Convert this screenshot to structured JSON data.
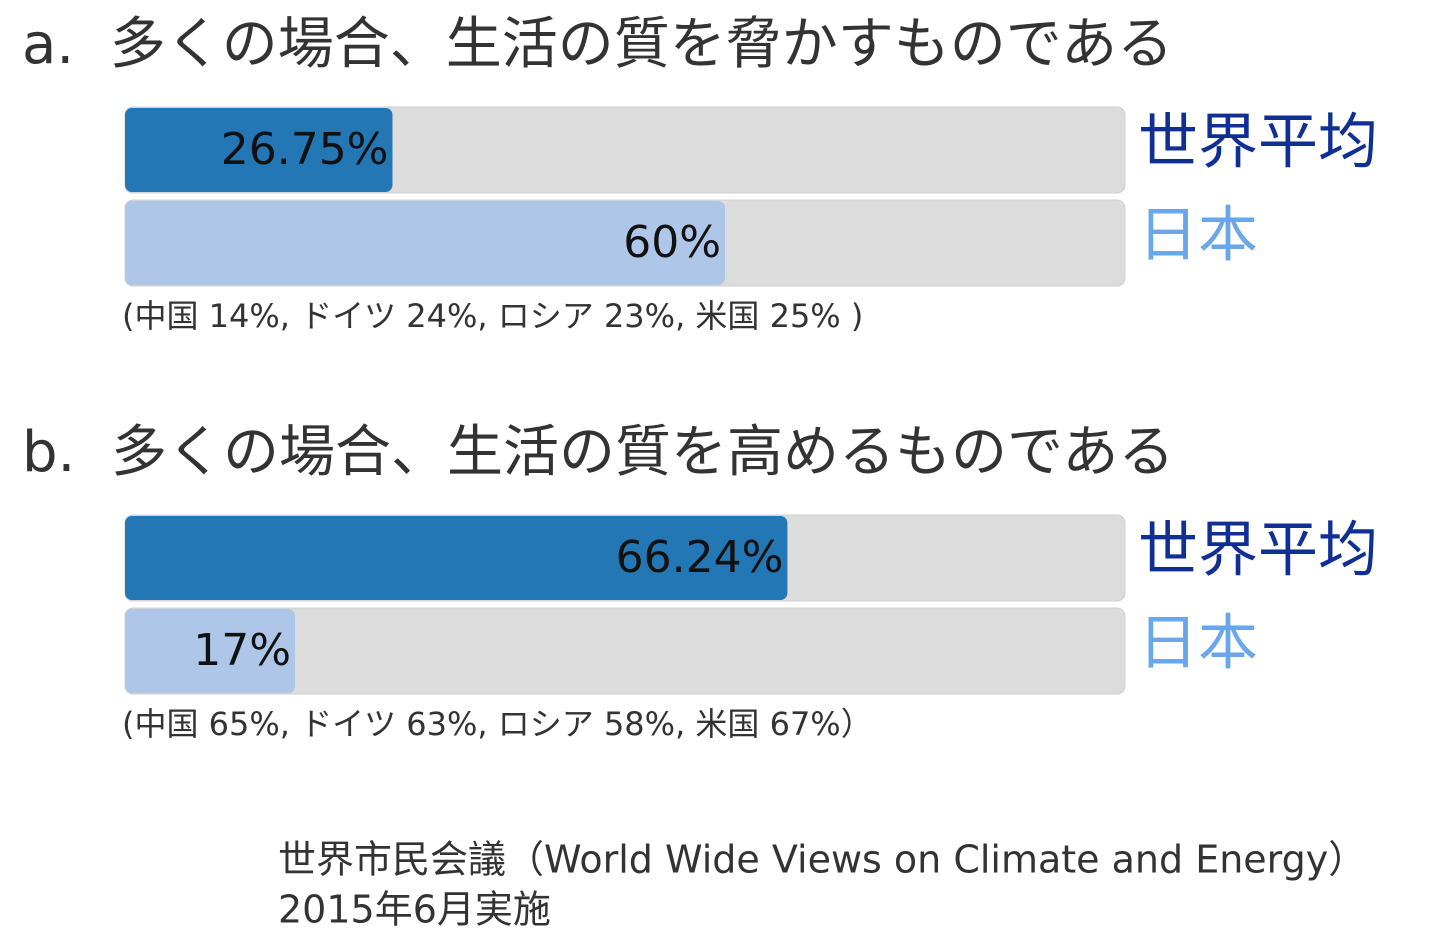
{
  "chart_data": [
    {
      "type": "bar",
      "orientation": "horizontal",
      "title": "a.  多くの場合、生活の質を脅かすものである",
      "categories": [
        "世界平均",
        "日本"
      ],
      "values": [
        26.75,
        60
      ],
      "value_labels": [
        "26.75%",
        "60%"
      ],
      "colors": [
        "#2377b4",
        "#aec7e8"
      ],
      "label_colors": [
        "#0f2f95",
        "#6aa6ea"
      ],
      "xlim": [
        0,
        100
      ],
      "note": "(中国 14%, ドイツ 24%, ロシア 23%, 米国 25% )"
    },
    {
      "type": "bar",
      "orientation": "horizontal",
      "title": "b.  多くの場合、生活の質を高めるものである",
      "categories": [
        "世界平均",
        "日本"
      ],
      "values": [
        66.24,
        17
      ],
      "value_labels": [
        "66.24%",
        "17%"
      ],
      "colors": [
        "#2377b4",
        "#aec7e8"
      ],
      "label_colors": [
        "#0f2f95",
        "#6aa6ea"
      ],
      "xlim": [
        0,
        100
      ],
      "note": "(中国 65%, ドイツ 63%, ロシア 58%, 米国 67%）"
    }
  ],
  "source": [
    "世界市民会議（World Wide Views on Climate and Energy）",
    "2015年6月実施"
  ]
}
